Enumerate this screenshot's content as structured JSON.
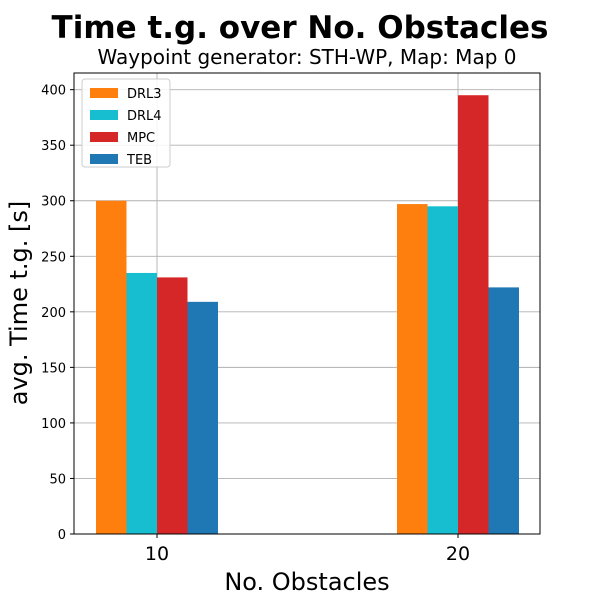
{
  "chart_data": {
    "type": "bar",
    "title": "Time t.g. over No. Obstacles",
    "subtitle": "Waypoint generator: STH-WP, Map: Map 0",
    "xlabel": "No. Obstacles",
    "ylabel": "avg. Time t.g. [s]",
    "categories": [
      "10",
      "20"
    ],
    "ylim": [
      0,
      415
    ],
    "yticks": [
      0,
      50,
      100,
      150,
      200,
      250,
      300,
      350,
      400
    ],
    "grid": true,
    "legend_position": "top-left",
    "series": [
      {
        "name": "DRL3",
        "color": "#ff7f0e",
        "values": [
          300,
          297
        ]
      },
      {
        "name": "DRL4",
        "color": "#17becf",
        "values": [
          235,
          295
        ]
      },
      {
        "name": "MPC",
        "color": "#d62728",
        "values": [
          231,
          395
        ]
      },
      {
        "name": "TEB",
        "color": "#1f77b4",
        "values": [
          209,
          222
        ]
      }
    ]
  }
}
